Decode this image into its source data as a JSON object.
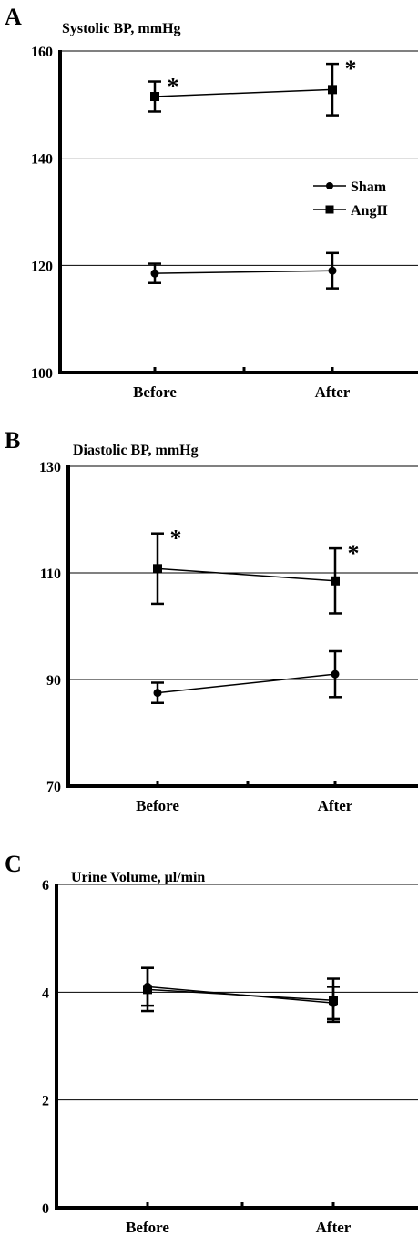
{
  "chart_data": [
    {
      "type": "line",
      "panel_label": "A",
      "title": "Systolic BP, mmHg",
      "categories": [
        "Before",
        "After"
      ],
      "ylim": [
        100,
        160
      ],
      "yticks": [
        100,
        120,
        140,
        160
      ],
      "ytick_labels": [
        "100",
        "120",
        "140",
        "160"
      ],
      "grid": true,
      "legend": {
        "placement": "right-middle",
        "entries": [
          {
            "label": "Sham",
            "marker": "circle"
          },
          {
            "label": "AngII",
            "marker": "square"
          }
        ]
      },
      "series": [
        {
          "name": "Sham",
          "marker": "circle",
          "values": [
            118.5,
            119.0
          ],
          "error": [
            1.8,
            3.3
          ],
          "significance": [
            "",
            ""
          ]
        },
        {
          "name": "AngII",
          "marker": "square",
          "values": [
            151.5,
            152.8
          ],
          "error": [
            2.8,
            4.8
          ],
          "significance": [
            "*",
            "*"
          ]
        }
      ]
    },
    {
      "type": "line",
      "panel_label": "B",
      "title": "Diastolic BP, mmHg",
      "categories": [
        "Before",
        "After"
      ],
      "ylim": [
        70,
        130
      ],
      "yticks": [
        70,
        90,
        110,
        130
      ],
      "ytick_labels": [
        "70",
        "90",
        "110",
        "130"
      ],
      "grid": true,
      "series": [
        {
          "name": "Sham",
          "marker": "circle",
          "values": [
            87.5,
            91.0
          ],
          "error": [
            1.9,
            4.3
          ],
          "significance": [
            "",
            ""
          ]
        },
        {
          "name": "AngII",
          "marker": "square",
          "values": [
            110.8,
            108.5
          ],
          "error": [
            6.6,
            6.1
          ],
          "significance": [
            "*",
            "*"
          ]
        }
      ]
    },
    {
      "type": "line",
      "panel_label": "C",
      "title": "Urine Volume, μl/min",
      "categories": [
        "Before",
        "After"
      ],
      "ylim": [
        0,
        6
      ],
      "yticks": [
        0,
        2,
        4,
        6
      ],
      "ytick_labels": [
        "0",
        "2",
        "4",
        "6"
      ],
      "grid": true,
      "series": [
        {
          "name": "Sham",
          "marker": "circle",
          "values": [
            4.1,
            3.8
          ],
          "error": [
            0.35,
            0.3
          ],
          "significance": [
            "",
            ""
          ]
        },
        {
          "name": "AngII",
          "marker": "square",
          "values": [
            4.05,
            3.85
          ],
          "error": [
            0.4,
            0.4
          ],
          "significance": [
            "",
            ""
          ]
        }
      ]
    }
  ]
}
